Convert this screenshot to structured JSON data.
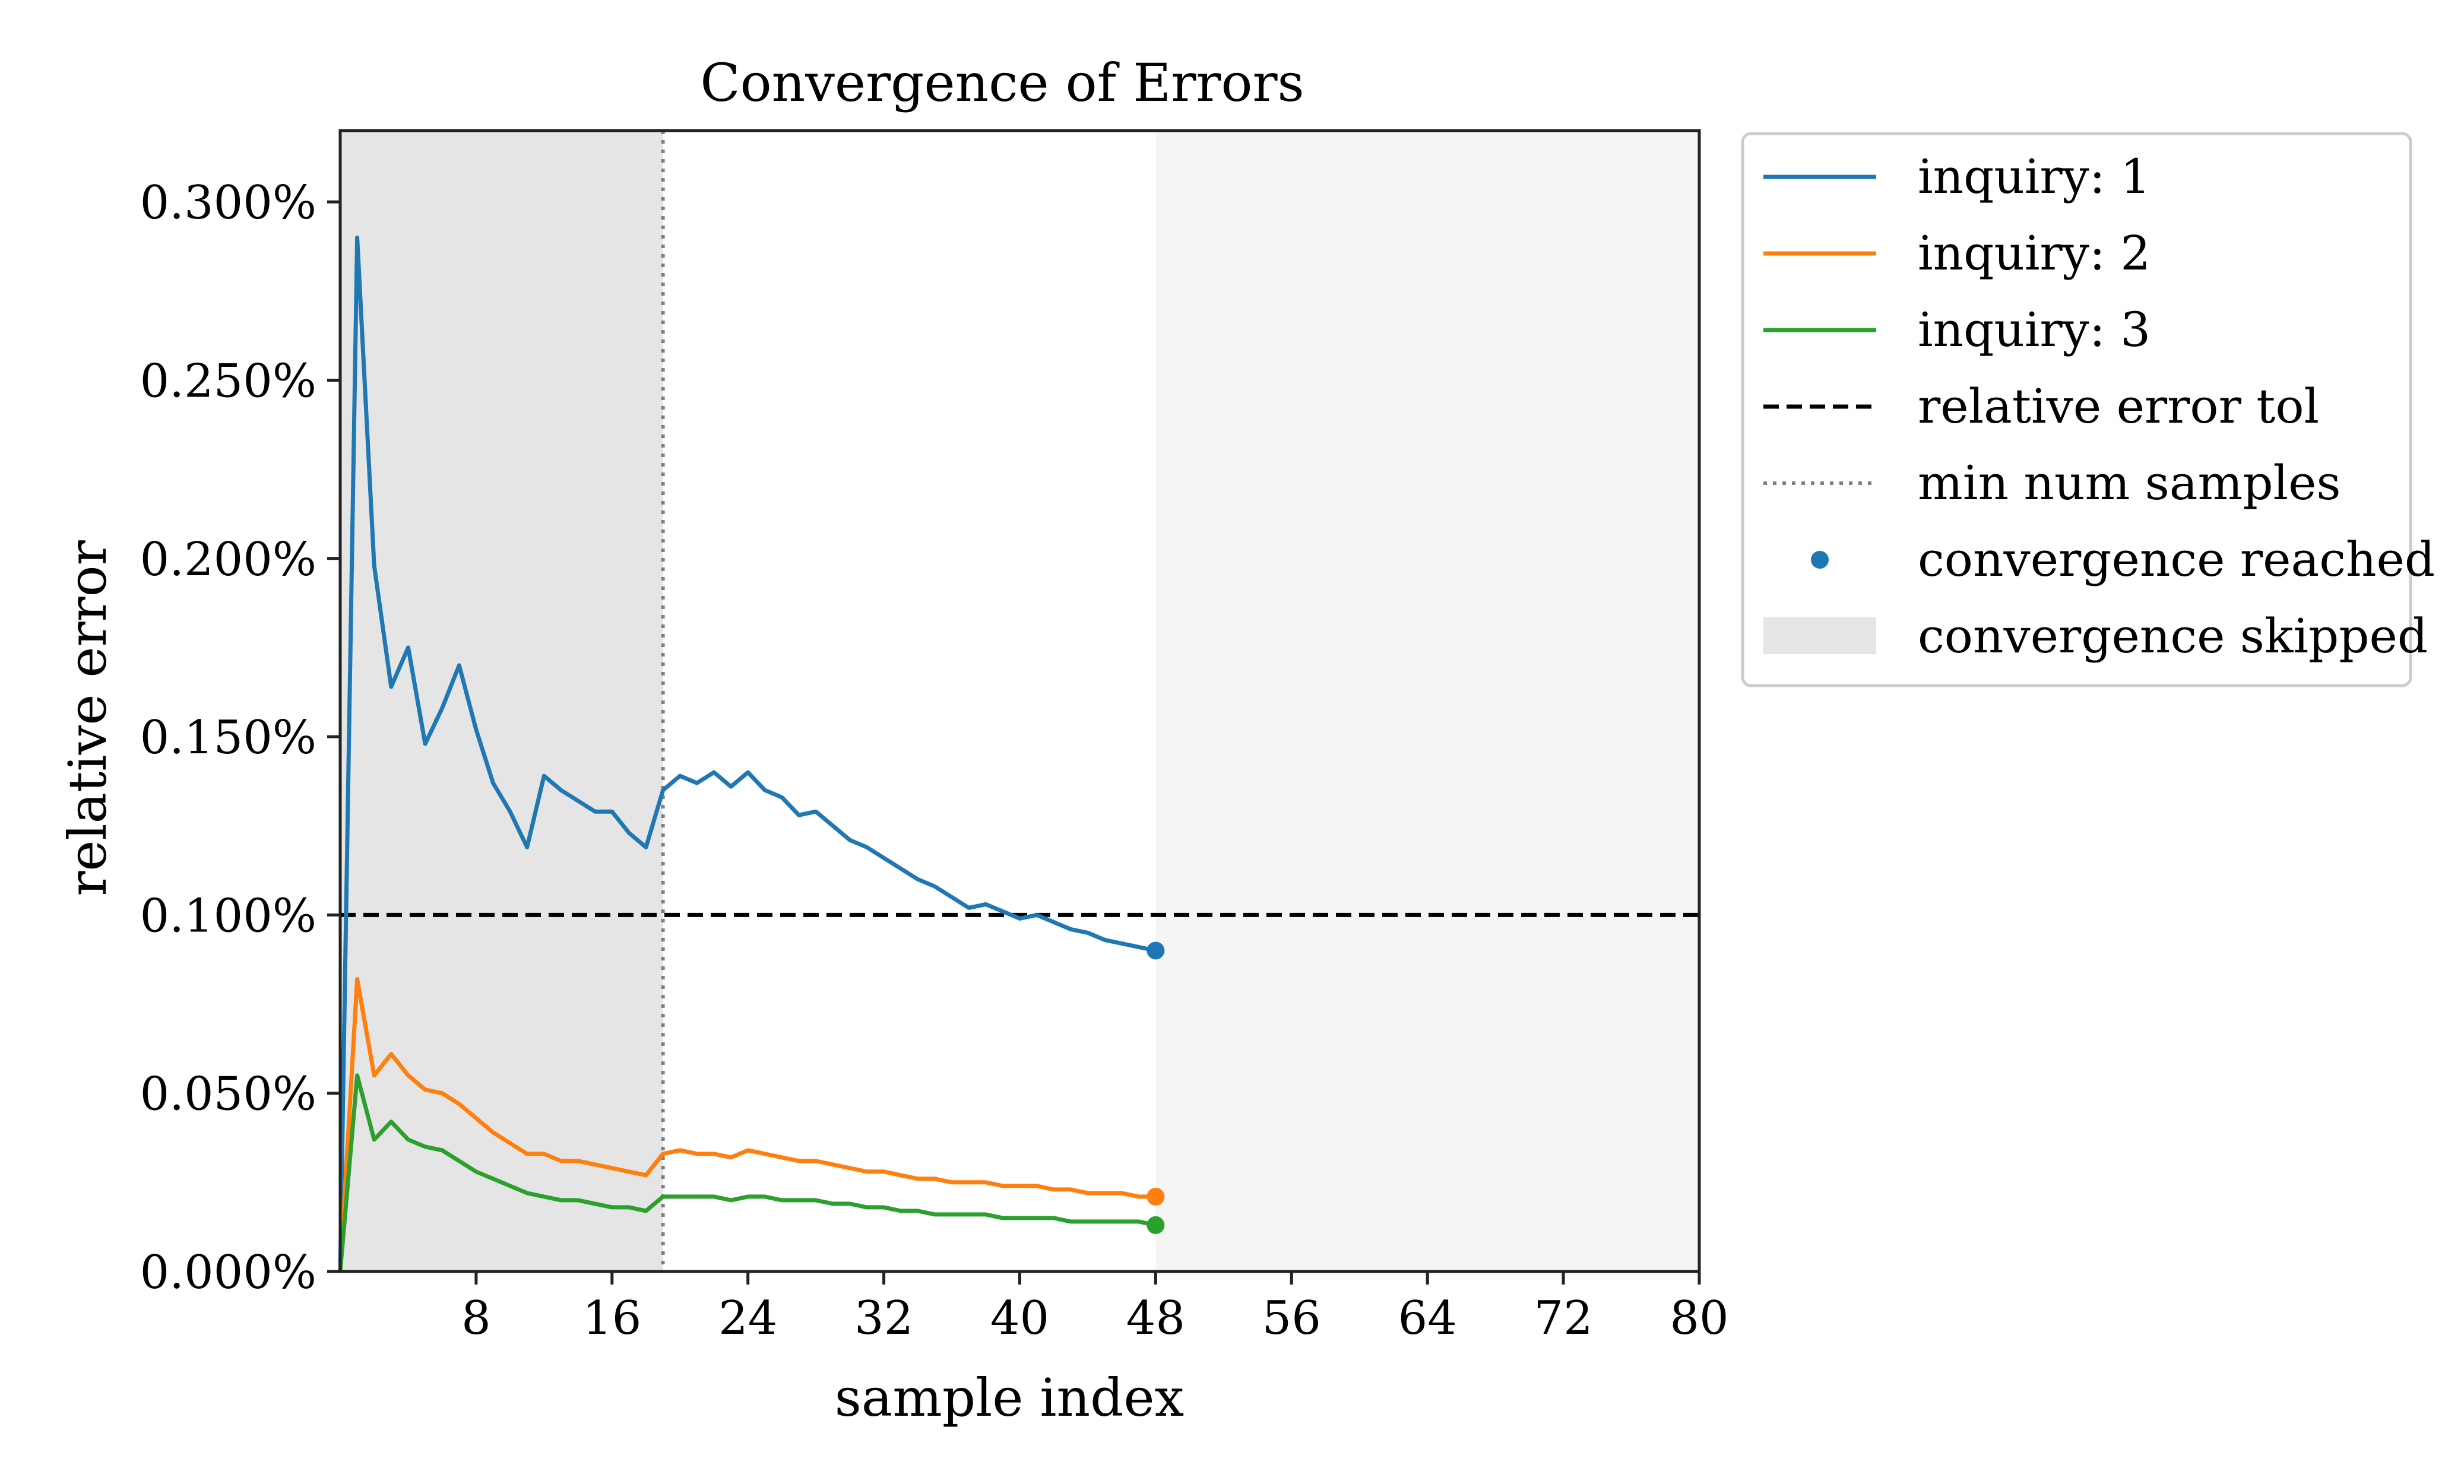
{
  "chart_data": {
    "type": "line",
    "title": "Convergence of Errors",
    "xlabel": "sample index",
    "ylabel": "relative error",
    "xlim": [
      0,
      80
    ],
    "ylim": [
      0,
      0.0032
    ],
    "xticks": [
      8,
      16,
      24,
      32,
      40,
      48,
      56,
      64,
      72,
      80
    ],
    "yticks": [
      0,
      0.0005,
      0.001,
      0.0015,
      0.002,
      0.0025,
      0.003
    ],
    "ytick_labels": [
      "0.000%",
      "0.050%",
      "0.100%",
      "0.150%",
      "0.200%",
      "0.250%",
      "0.300%"
    ],
    "xtick_labels": [
      "8",
      "16",
      "24",
      "32",
      "40",
      "48",
      "56",
      "64",
      "72",
      "80"
    ],
    "grid": false,
    "legend_position": "outside-right-top",
    "tolerance": {
      "name": "relative error tol",
      "value": 0.001,
      "color": "#000000",
      "style": "dashed"
    },
    "min_samples": {
      "name": "min num samples",
      "value": 19,
      "color": "#808080",
      "style": "dotted"
    },
    "skipped_regions": [
      {
        "name": "convergence skipped",
        "from": 0,
        "to": 19,
        "color": "#e5e5e5"
      },
      {
        "from": 48,
        "to": 80,
        "color": "#f5f5f5"
      }
    ],
    "convergence_marker_label": "convergence reached",
    "series": [
      {
        "name": "inquiry: 1",
        "color": "#1f77b4",
        "x": [
          0,
          1,
          2,
          3,
          4,
          5,
          6,
          7,
          8,
          9,
          10,
          11,
          12,
          13,
          14,
          15,
          16,
          17,
          18,
          19,
          20,
          21,
          22,
          23,
          24,
          25,
          26,
          27,
          28,
          29,
          30,
          31,
          32,
          33,
          34,
          35,
          36,
          37,
          38,
          39,
          40,
          41,
          42,
          43,
          44,
          45,
          46,
          47,
          48
        ],
        "values": [
          0.0,
          0.0029,
          0.00198,
          0.00164,
          0.00175,
          0.00148,
          0.00158,
          0.0017,
          0.00152,
          0.00137,
          0.00129,
          0.00119,
          0.00139,
          0.00135,
          0.00132,
          0.00129,
          0.00129,
          0.00123,
          0.00119,
          0.00135,
          0.00139,
          0.00137,
          0.0014,
          0.00136,
          0.0014,
          0.00135,
          0.00133,
          0.00128,
          0.00129,
          0.00125,
          0.00121,
          0.00119,
          0.00116,
          0.00113,
          0.0011,
          0.00108,
          0.00105,
          0.00102,
          0.00103,
          0.00101,
          0.00099,
          0.001,
          0.00098,
          0.00096,
          0.00095,
          0.00093,
          0.00092,
          0.00091,
          0.0009
        ],
        "converged_at": {
          "x": 48,
          "y": 0.0009
        }
      },
      {
        "name": "inquiry: 2",
        "color": "#ff7f0e",
        "x": [
          0,
          1,
          2,
          3,
          4,
          5,
          6,
          7,
          8,
          9,
          10,
          11,
          12,
          13,
          14,
          15,
          16,
          17,
          18,
          19,
          20,
          21,
          22,
          23,
          24,
          25,
          26,
          27,
          28,
          29,
          30,
          31,
          32,
          33,
          34,
          35,
          36,
          37,
          38,
          39,
          40,
          41,
          42,
          43,
          44,
          45,
          46,
          47,
          48
        ],
        "values": [
          0.0,
          0.00082,
          0.00055,
          0.00061,
          0.00055,
          0.00051,
          0.0005,
          0.00047,
          0.00043,
          0.00039,
          0.00036,
          0.00033,
          0.00033,
          0.00031,
          0.00031,
          0.0003,
          0.00029,
          0.00028,
          0.00027,
          0.00033,
          0.00034,
          0.00033,
          0.00033,
          0.00032,
          0.00034,
          0.00033,
          0.00032,
          0.00031,
          0.00031,
          0.0003,
          0.00029,
          0.00028,
          0.00028,
          0.00027,
          0.00026,
          0.00026,
          0.00025,
          0.00025,
          0.00025,
          0.00024,
          0.00024,
          0.00024,
          0.00023,
          0.00023,
          0.00022,
          0.00022,
          0.00022,
          0.00021,
          0.00021
        ],
        "converged_at": {
          "x": 48,
          "y": 0.00021
        }
      },
      {
        "name": "inquiry: 3",
        "color": "#2ca02c",
        "x": [
          0,
          1,
          2,
          3,
          4,
          5,
          6,
          7,
          8,
          9,
          10,
          11,
          12,
          13,
          14,
          15,
          16,
          17,
          18,
          19,
          20,
          21,
          22,
          23,
          24,
          25,
          26,
          27,
          28,
          29,
          30,
          31,
          32,
          33,
          34,
          35,
          36,
          37,
          38,
          39,
          40,
          41,
          42,
          43,
          44,
          45,
          46,
          47,
          48
        ],
        "values": [
          0.0,
          0.00055,
          0.00037,
          0.00042,
          0.00037,
          0.00035,
          0.00034,
          0.00031,
          0.00028,
          0.00026,
          0.00024,
          0.00022,
          0.00021,
          0.0002,
          0.0002,
          0.00019,
          0.00018,
          0.00018,
          0.00017,
          0.00021,
          0.00021,
          0.00021,
          0.00021,
          0.0002,
          0.00021,
          0.00021,
          0.0002,
          0.0002,
          0.0002,
          0.00019,
          0.00019,
          0.00018,
          0.00018,
          0.00017,
          0.00017,
          0.00016,
          0.00016,
          0.00016,
          0.00016,
          0.00015,
          0.00015,
          0.00015,
          0.00015,
          0.00014,
          0.00014,
          0.00014,
          0.00014,
          0.00014,
          0.00013
        ],
        "converged_at": {
          "x": 48,
          "y": 0.00013
        }
      }
    ]
  }
}
